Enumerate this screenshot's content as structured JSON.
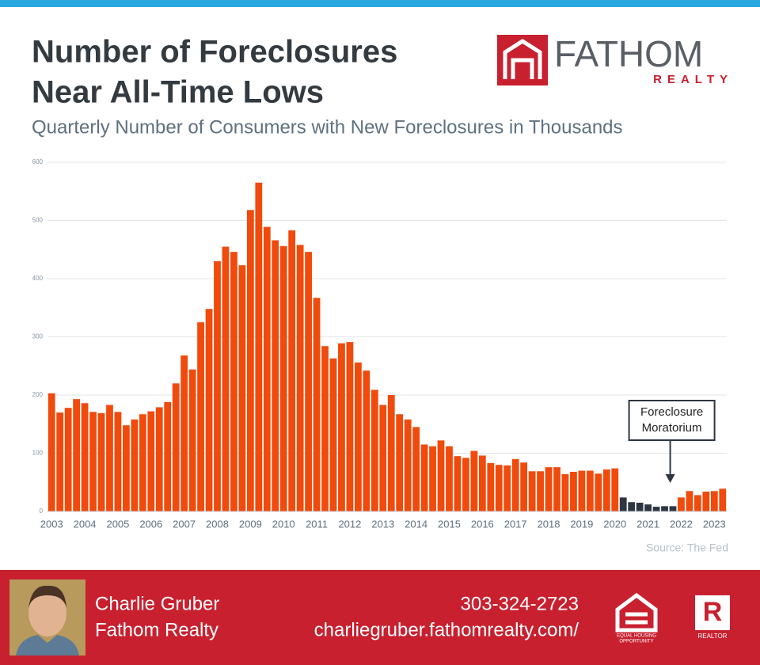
{
  "header": {
    "title": [
      "Number of Foreclosures",
      "Near All-Time Lows"
    ],
    "logo_name": "FATHOM",
    "logo_sub": "REALTY"
  },
  "chart_data": {
    "type": "bar",
    "subtitle": "Quarterly Number of Consumers with New Foreclosures in Thousands",
    "categories": [
      "2003",
      null,
      null,
      null,
      "2004",
      null,
      null,
      null,
      "2005",
      null,
      null,
      null,
      "2006",
      null,
      null,
      null,
      "2007",
      null,
      null,
      null,
      "2008",
      null,
      null,
      null,
      "2009",
      null,
      null,
      null,
      "2010",
      null,
      null,
      null,
      "2011",
      null,
      null,
      null,
      "2012",
      null,
      null,
      null,
      "2013",
      null,
      null,
      null,
      "2014",
      null,
      null,
      null,
      "2015",
      null,
      null,
      null,
      "2016",
      null,
      null,
      null,
      "2017",
      null,
      null,
      null,
      "2018",
      null,
      null,
      null,
      "2019",
      null,
      null,
      null,
      "2020",
      null,
      null,
      null,
      "2021",
      null,
      null,
      null,
      "2022",
      null,
      null,
      null,
      "2023",
      null
    ],
    "values": [
      203,
      170,
      178,
      193,
      186,
      171,
      169,
      183,
      171,
      148,
      158,
      167,
      172,
      179,
      188,
      220,
      268,
      244,
      325,
      348,
      430,
      455,
      446,
      423,
      518,
      565,
      489,
      466,
      456,
      483,
      458,
      446,
      367,
      284,
      263,
      289,
      291,
      256,
      242,
      209,
      183,
      200,
      167,
      158,
      145,
      115,
      112,
      122,
      112,
      95,
      92,
      104,
      96,
      83,
      80,
      79,
      90,
      84,
      69,
      69,
      76,
      76,
      64,
      68,
      70,
      70,
      65,
      72,
      74,
      24,
      16,
      15,
      12,
      8,
      9,
      9,
      24,
      35,
      28,
      34,
      35,
      39
    ],
    "colors": [
      "#f04a0c",
      "#2d3640"
    ],
    "moratorium": [
      69,
      75
    ],
    "ylim": [
      0,
      600
    ],
    "yticks": [
      0,
      100,
      200,
      300,
      400,
      500,
      600
    ],
    "grid": true,
    "annotation": [
      "Foreclosure",
      "Moratorium"
    ],
    "source": "Source: The Fed"
  },
  "footer": {
    "name": "Charlie Gruber",
    "company": "Fathom Realty",
    "phone": "303-324-2723",
    "url": "charliegruber.fathomrealty.com/",
    "badge1": [
      "EQUAL HOUSING",
      "OPPORTUNITY"
    ],
    "badge2": "REALTOR"
  }
}
